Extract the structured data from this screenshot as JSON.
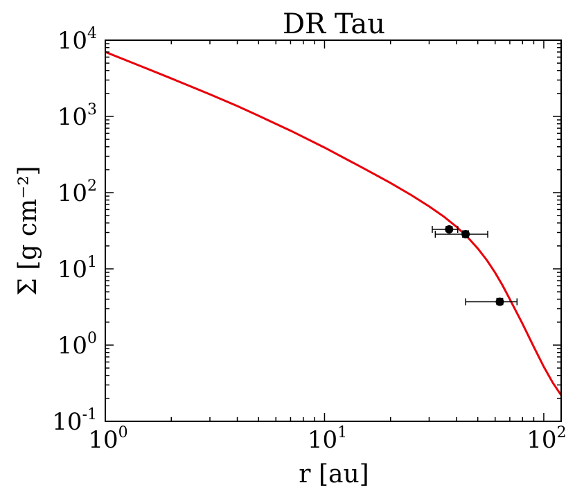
{
  "chart_data": {
    "type": "line",
    "title": "DR Tau",
    "xlabel": "r [au]",
    "ylabel": "Σ [g cm⁻²]",
    "xscale": "log",
    "yscale": "log",
    "xlim": [
      1,
      120
    ],
    "ylim": [
      0.1,
      10000
    ],
    "grid": false,
    "xticks": [
      {
        "base": "10",
        "exp": "0",
        "value": 1
      },
      {
        "base": "10",
        "exp": "1",
        "value": 10
      },
      {
        "base": "10",
        "exp": "2",
        "value": 100
      }
    ],
    "yticks": [
      {
        "base": "10",
        "exp": "-1",
        "value": 0.1
      },
      {
        "base": "10",
        "exp": "0",
        "value": 1
      },
      {
        "base": "10",
        "exp": "1",
        "value": 10
      },
      {
        "base": "10",
        "exp": "2",
        "value": 100
      },
      {
        "base": "10",
        "exp": "3",
        "value": 1000
      },
      {
        "base": "10",
        "exp": "4",
        "value": 10000
      }
    ],
    "model_curve": {
      "color": "#e8000b",
      "x": [
        1,
        1.5,
        2,
        3,
        4,
        5,
        7,
        10,
        15,
        20,
        25,
        30,
        35,
        40,
        45,
        50,
        55,
        60,
        65,
        70,
        80,
        90,
        100,
        110,
        120
      ],
      "y": [
        7000,
        4400,
        3150,
        1950,
        1370,
        1020,
        650,
        390,
        210,
        134,
        92,
        66,
        48.5,
        35.6,
        25.9,
        18.5,
        13.0,
        8.9,
        6.0,
        4.0,
        1.9,
        0.95,
        0.52,
        0.32,
        0.22
      ]
    },
    "measurements": {
      "color": "#000000",
      "points": [
        {
          "x": 37,
          "y": 33,
          "xerr_low": 31,
          "xerr_high": 40.5,
          "yerr_low": 31,
          "yerr_high": 36
        },
        {
          "x": 44,
          "y": 28.5,
          "xerr_low": 32,
          "xerr_high": 55.5,
          "yerr_low": 26,
          "yerr_high": 31.5
        },
        {
          "x": 63,
          "y": 3.7,
          "xerr_low": 44,
          "xerr_high": 75.5,
          "yerr_low": 3.4,
          "yerr_high": 4.1
        }
      ]
    }
  }
}
